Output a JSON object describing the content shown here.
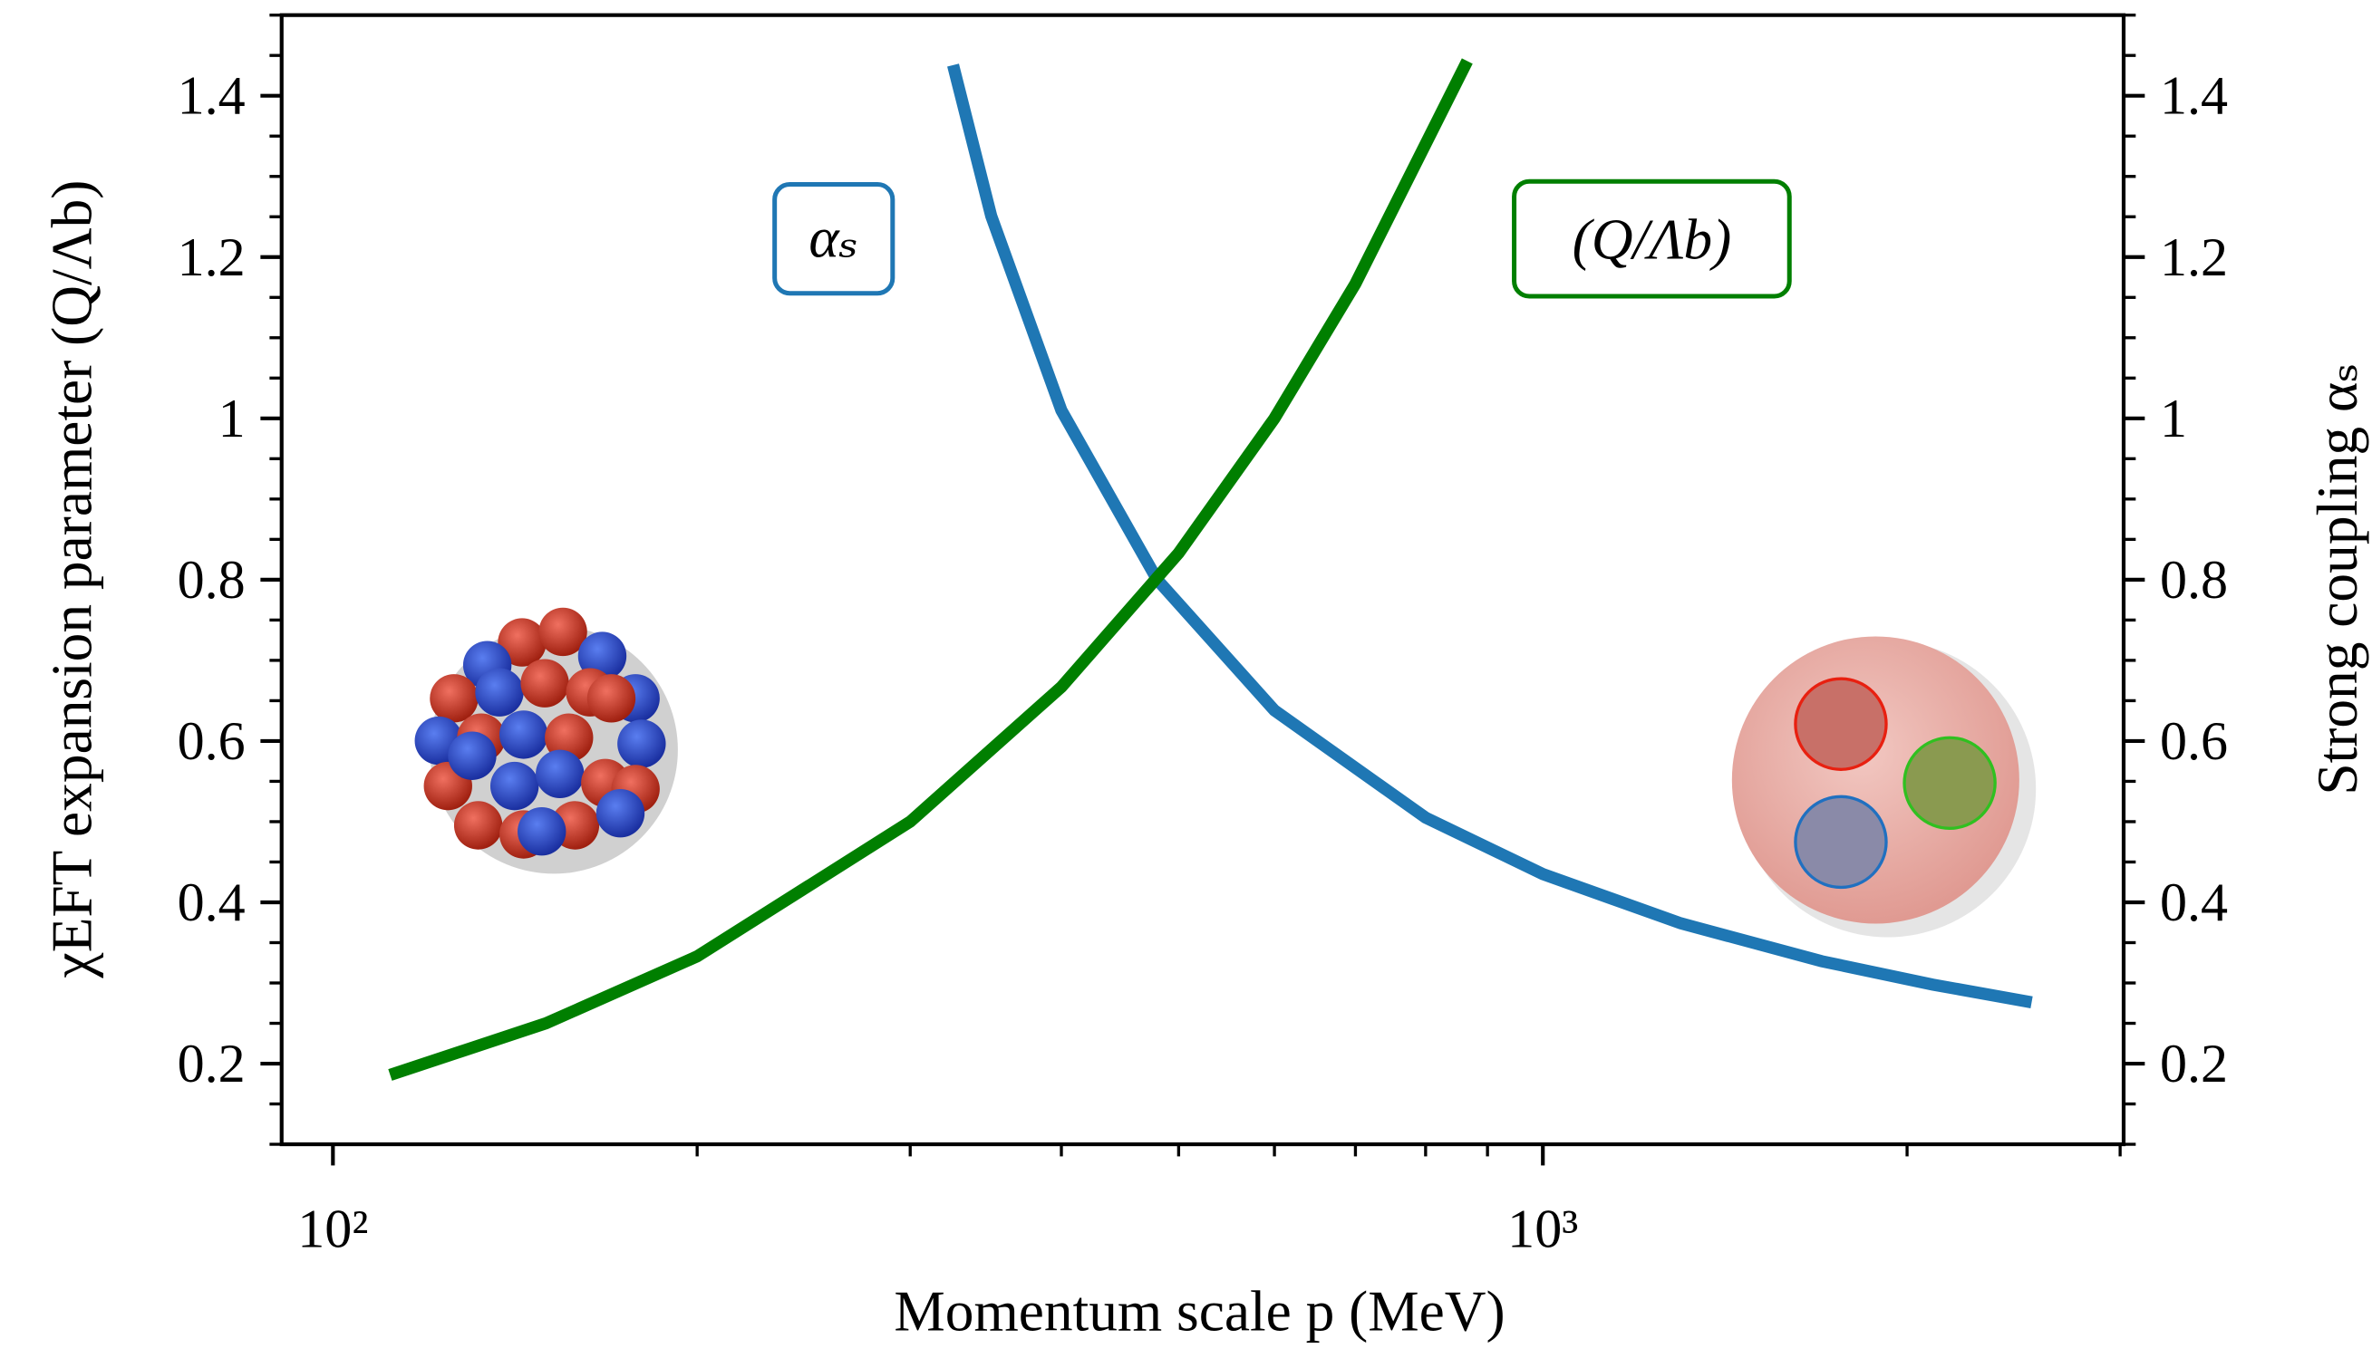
{
  "chart_data": {
    "type": "line",
    "xlabel": "Momentum scale p (MeV)",
    "ylabel": "χEFT expansion parameter (Q/Λb)",
    "y2label": "Strong coupling αₛ",
    "xscale": "log",
    "xlim": [
      90.7,
      3020
    ],
    "xticks": [
      {
        "value": 100,
        "label": "10²"
      },
      {
        "value": 1000,
        "label": "10³"
      }
    ],
    "xminorticks": [
      200,
      300,
      400,
      500,
      600,
      700,
      800,
      900,
      2000,
      3000
    ],
    "ylim": [
      0.1,
      1.5
    ],
    "yticks": [
      0.2,
      0.4,
      0.6,
      0.8,
      1.0,
      1.2,
      1.4
    ],
    "yminorticks": [
      0.1,
      0.15,
      0.25,
      0.3,
      0.35,
      0.45,
      0.5,
      0.55,
      0.65,
      0.7,
      0.75,
      0.85,
      0.9,
      0.95,
      1.05,
      1.1,
      1.15,
      1.25,
      1.3,
      1.35,
      1.45,
      1.5
    ],
    "y2lim": [
      0.1,
      1.5
    ],
    "y2ticks": [
      0.2,
      0.4,
      0.6,
      0.8,
      1.0,
      1.2,
      1.4
    ],
    "series": [
      {
        "name": "αₛ",
        "color": "#1f77b4",
        "axis": "y2",
        "x": [
          325.5,
          350,
          400,
          480,
          600,
          800,
          1000,
          1300,
          1700,
          2100,
          2535
        ],
        "values": [
          1.438,
          1.251,
          1.01,
          0.8,
          0.638,
          0.505,
          0.435,
          0.374,
          0.327,
          0.298,
          0.276
        ]
      },
      {
        "name": "(Q/Λb)",
        "color": "#007f00",
        "x": [
          111.5,
          150,
          200,
          300,
          400,
          500,
          600,
          700,
          866
        ],
        "values": [
          0.186,
          0.25,
          0.333,
          0.5,
          0.667,
          0.833,
          1.0,
          1.167,
          1.443
        ]
      }
    ]
  }
}
